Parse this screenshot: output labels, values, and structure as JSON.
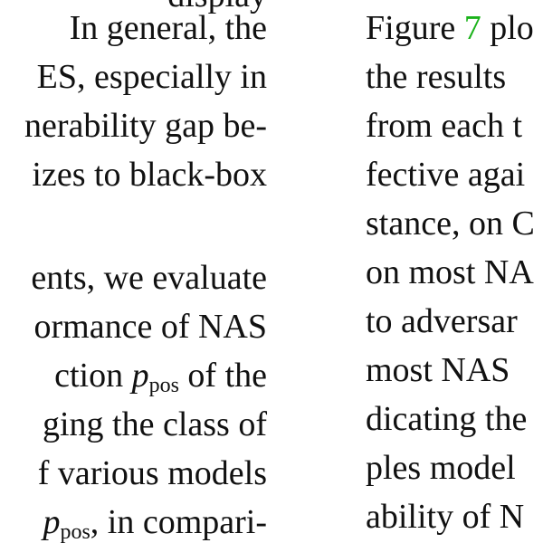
{
  "left_column": {
    "top_fragment": "display",
    "lines": [
      "In general, the",
      "ES, especially in",
      "nerability gap be-",
      "izes to black-box",
      "ents, we evaluate",
      "ormance of NAS"
    ],
    "line7_pre": "ction ",
    "line7_var": "p",
    "line7_sub": "pos",
    "line7_post": " of the",
    "line8": "ging the class of",
    "line9": "f various models",
    "line10_var": "p",
    "line10_sub": "pos",
    "line10_post": ", in compari-"
  },
  "right_column": {
    "line1_pre": "Figure ",
    "line1_link": "7",
    "line1_post": " plo",
    "lines": [
      "the results",
      "from each t",
      "fective agai",
      "stance, on C",
      "on most NA",
      "to adversar",
      "most NAS",
      "dicating the",
      "ples model",
      "ability of N"
    ]
  }
}
